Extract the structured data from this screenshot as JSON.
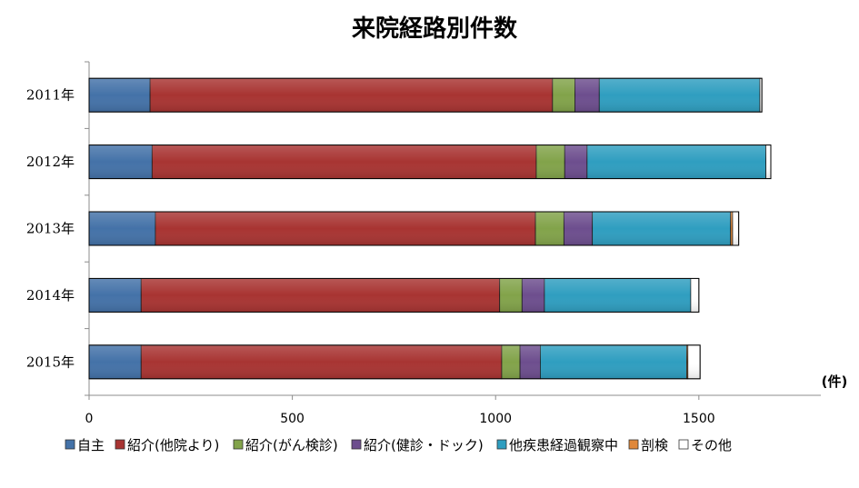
{
  "chart_data": {
    "type": "bar",
    "orientation": "horizontal",
    "stacked": true,
    "title": "来院経路別件数",
    "unit_label": "(件)",
    "categories": [
      "2011年",
      "2012年",
      "2013年",
      "2014年",
      "2015年"
    ],
    "x_ticks": [
      "0",
      "500",
      "1000",
      "1500"
    ],
    "xlim": [
      0,
      1800
    ],
    "grid": false,
    "legend_position": "bottom",
    "series": [
      {
        "name": "自主",
        "color": "#4472a8",
        "values": [
          150,
          155,
          163,
          128,
          128
        ]
      },
      {
        "name": "紹介(他院より)",
        "color": "#a83432",
        "values": [
          990,
          945,
          935,
          882,
          887
        ]
      },
      {
        "name": "紹介(がん検診)",
        "color": "#82a34a",
        "values": [
          55,
          70,
          70,
          55,
          45
        ]
      },
      {
        "name": "紹介(健診・ドック)",
        "color": "#6d4e8e",
        "values": [
          60,
          55,
          70,
          55,
          50
        ]
      },
      {
        "name": "他疾患経過観察中",
        "color": "#2f9ec0",
        "values": [
          395,
          440,
          340,
          360,
          360
        ]
      },
      {
        "name": "剖検",
        "color": "#e0883a",
        "values": [
          0,
          0,
          5,
          0,
          3
        ]
      },
      {
        "name": "その他",
        "color": "#ffffff",
        "values": [
          5,
          12,
          15,
          20,
          30
        ]
      }
    ]
  }
}
